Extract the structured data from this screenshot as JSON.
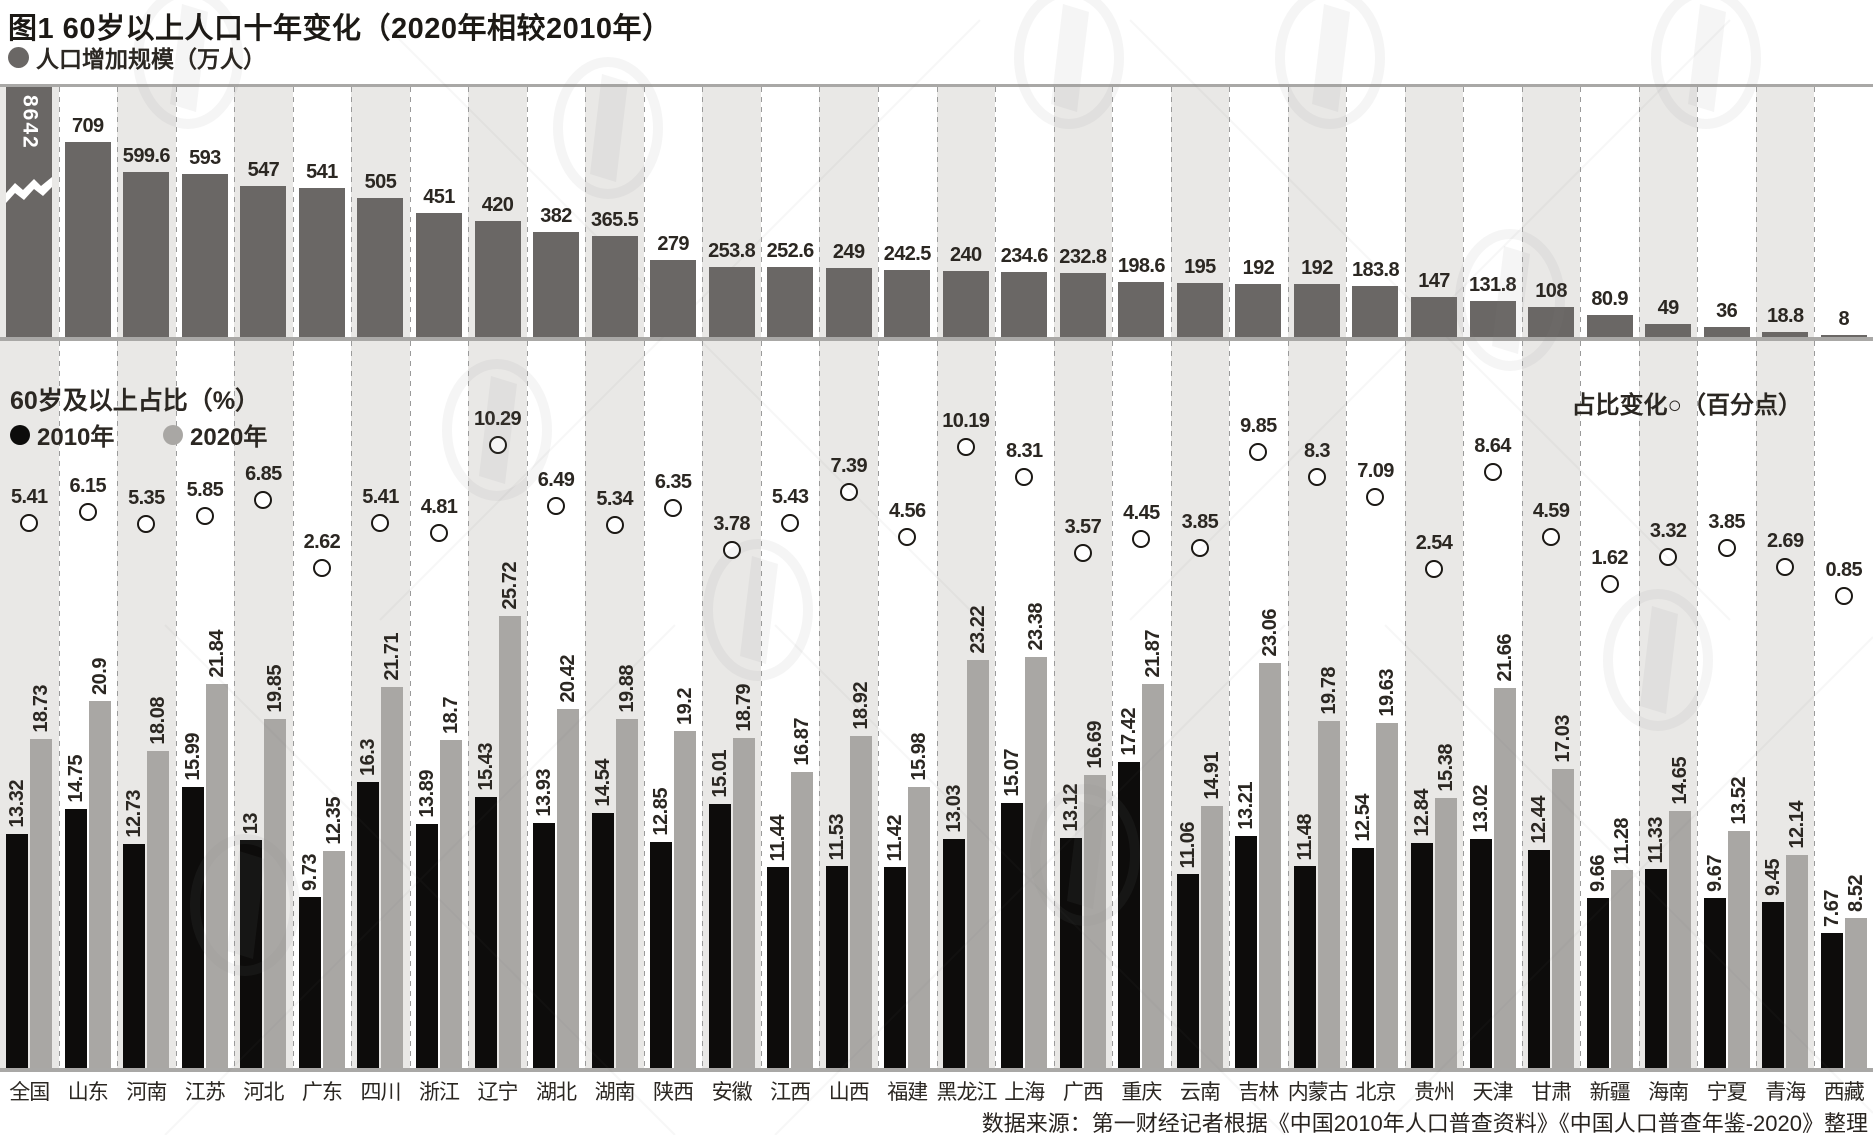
{
  "title": "图1 60岁以上人口十年变化（2020年相较2010年）",
  "top_panel": {
    "legend": "人口增加规模（万人）"
  },
  "bottom_panel": {
    "legend_title": "60岁及以上占比（%）",
    "legend_2010": "2010年",
    "legend_2020": "2020年",
    "legend_change": "占比变化○（百分点）"
  },
  "source": "数据来源：第一财经记者根据《中国2010年人口普查资料》《中国人口普查年鉴-2020》整理",
  "watermark_icon": "yicai-logo",
  "colors": {
    "increase_bar": "#6a6765",
    "bar_2010": "#0d0c0b",
    "bar_2020": "#a9a7a4",
    "stripe": "#e9e8e6",
    "baseline": "#a9a8a6",
    "text": "#2b2722"
  },
  "chart_data": {
    "type": "bar",
    "title": "图1 60岁以上人口十年变化（2020年相较2010年）",
    "categories": [
      "全国",
      "山东",
      "河南",
      "江苏",
      "河北",
      "广东",
      "四川",
      "浙江",
      "辽宁",
      "湖北",
      "湖南",
      "陕西",
      "安徽",
      "江西",
      "山西",
      "福建",
      "黑龙江",
      "上海",
      "广西",
      "重庆",
      "云南",
      "吉林",
      "内蒙古",
      "北京",
      "贵州",
      "天津",
      "甘肃",
      "新疆",
      "海南",
      "宁夏",
      "青海",
      "西藏"
    ],
    "series": [
      {
        "name": "人口增加规模（万人）",
        "type": "bar",
        "values": [
          "8642",
          "709",
          "599.6",
          "593",
          "547",
          "541",
          "505",
          "451",
          "420",
          "382",
          "365.5",
          "279",
          "253.8",
          "252.6",
          "249",
          "242.5",
          "240",
          "234.6",
          "232.8",
          "198.6",
          "195",
          "192",
          "192",
          "183.8",
          "147",
          "131.8",
          "108",
          "80.9",
          "49",
          "36",
          "18.8",
          "8"
        ]
      },
      {
        "name": "2010年占比（%）",
        "type": "bar",
        "values": [
          "13.32",
          "14.75",
          "12.73",
          "15.99",
          "13",
          "9.73",
          "16.3",
          "13.89",
          "15.43",
          "13.93",
          "14.54",
          "12.85",
          "15.01",
          "11.44",
          "11.53",
          "11.42",
          "13.03",
          "15.07",
          "13.12",
          "17.42",
          "11.06",
          "13.21",
          "11.48",
          "12.54",
          "12.84",
          "13.02",
          "12.44",
          "9.66",
          "11.33",
          "9.67",
          "9.45",
          "7.67"
        ]
      },
      {
        "name": "2020年占比（%）",
        "type": "bar",
        "values": [
          "18.73",
          "20.9",
          "18.08",
          "21.84",
          "19.85",
          "12.35",
          "21.71",
          "18.7",
          "25.72",
          "20.42",
          "19.88",
          "19.2",
          "18.79",
          "16.87",
          "18.92",
          "15.98",
          "23.22",
          "23.38",
          "16.69",
          "21.87",
          "14.91",
          "23.06",
          "19.78",
          "19.63",
          "15.38",
          "21.66",
          "17.03",
          "11.28",
          "14.65",
          "13.52",
          "12.14",
          "8.52"
        ]
      },
      {
        "name": "占比变化（百分点）",
        "type": "point",
        "values": [
          "5.41",
          "6.15",
          "5.35",
          "5.85",
          "6.85",
          "2.62",
          "5.41",
          "4.81",
          "10.29",
          "6.49",
          "5.34",
          "6.35",
          "3.78",
          "5.43",
          "7.39",
          "4.56",
          "10.19",
          "8.31",
          "3.57",
          "4.45",
          "3.85",
          "9.85",
          "8.3",
          "7.09",
          "2.54",
          "8.64",
          "4.59",
          "1.62",
          "3.32",
          "3.85",
          "2.69",
          "0.85"
        ]
      }
    ],
    "broken_axis_category": "全国",
    "grid": "dashed column dividers with alternating column shading",
    "legend_position": "top-left and inline"
  }
}
